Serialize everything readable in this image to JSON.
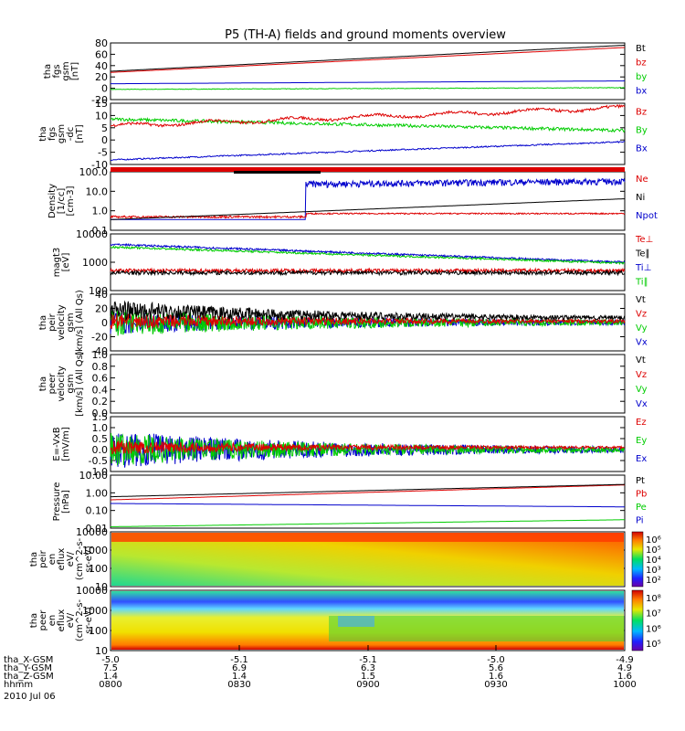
{
  "title": "P5 (TH-A) fields and ground moments overview",
  "colors": {
    "black": "#000000",
    "red": "#dd0000",
    "green": "#00cc00",
    "blue": "#0000cc"
  },
  "panels": [
    {
      "id": "fgs-gsm",
      "ylabel": [
        "tha",
        "fgs",
        "gsm",
        "[nT]"
      ],
      "ticks": [
        "80",
        "60",
        "40",
        "20",
        "0",
        "-20"
      ],
      "legend": [
        {
          "t": "Bt",
          "c": "black"
        },
        {
          "t": "bz",
          "c": "red"
        },
        {
          "t": "by",
          "c": "green"
        },
        {
          "t": "bx",
          "c": "blue"
        }
      ]
    },
    {
      "id": "fgs-gsm-dc",
      "ylabel": [
        "tha",
        "fgs",
        "gsm",
        "-dc",
        "[nT]"
      ],
      "ticks": [
        "15",
        "10",
        "5",
        "0",
        "-5",
        "-10"
      ],
      "legend": [
        {
          "t": "Bz",
          "c": "red"
        },
        {
          "t": "By",
          "c": "green"
        },
        {
          "t": "Bx",
          "c": "blue"
        }
      ]
    },
    {
      "id": "density",
      "ylabel": [
        "Density",
        "[1/cc]",
        "[cm-3]"
      ],
      "ticks": [
        "100.0",
        "10.0",
        "1.0",
        "0.1"
      ],
      "legend": [
        {
          "t": "Ne",
          "c": "red"
        },
        {
          "t": "Ni",
          "c": "black"
        },
        {
          "t": "Npot",
          "c": "blue"
        }
      ]
    },
    {
      "id": "temperature",
      "ylabel": [
        "magt3",
        "[eV]"
      ],
      "ticks": [
        "10000",
        "1000",
        "100"
      ],
      "legend": [
        {
          "t": "Te⊥",
          "c": "red"
        },
        {
          "t": "Te∥",
          "c": "black"
        },
        {
          "t": "Ti⊥",
          "c": "blue"
        },
        {
          "t": "Ti∥",
          "c": "green"
        }
      ]
    },
    {
      "id": "peir-velocity",
      "ylabel": [
        "tha",
        "peir",
        "velocity",
        "gsm",
        "[km/s] (All Qs)"
      ],
      "ticks": [
        "40",
        "20",
        "0",
        "-20",
        "-40"
      ],
      "legend": [
        {
          "t": "Vt",
          "c": "black"
        },
        {
          "t": "Vz",
          "c": "red"
        },
        {
          "t": "Vy",
          "c": "green"
        },
        {
          "t": "Vx",
          "c": "blue"
        }
      ]
    },
    {
      "id": "peer-velocity",
      "ylabel": [
        "tha",
        "peer",
        "velocity",
        "gsm",
        "[km/s] (All Qs)"
      ],
      "ticks": [
        "1.0",
        "0.8",
        "0.6",
        "0.4",
        "0.2",
        "0.0"
      ],
      "legend": [
        {
          "t": "Vt",
          "c": "black"
        },
        {
          "t": "Vz",
          "c": "red"
        },
        {
          "t": "Vy",
          "c": "green"
        },
        {
          "t": "Vx",
          "c": "blue"
        }
      ]
    },
    {
      "id": "efield",
      "ylabel": [
        "E=-VxB",
        "[mV/m]"
      ],
      "ticks": [
        "1.5",
        "1.0",
        "0.5",
        "0.0",
        "-0.5",
        "-1.0"
      ],
      "legend": [
        {
          "t": "Ez",
          "c": "red"
        },
        {
          "t": "Ey",
          "c": "green"
        },
        {
          "t": "Ex",
          "c": "blue"
        }
      ]
    },
    {
      "id": "pressure",
      "ylabel": [
        "Pressure",
        "[nPa]"
      ],
      "ticks": [
        "10.00",
        "1.00",
        "0.10",
        "0.01"
      ],
      "legend": [
        {
          "t": "Pt",
          "c": "black"
        },
        {
          "t": "Pb",
          "c": "red"
        },
        {
          "t": "Pe",
          "c": "green"
        },
        {
          "t": "Pi",
          "c": "blue"
        }
      ]
    },
    {
      "id": "peir-eflux",
      "ylabel": [
        "tha",
        "peir",
        "en",
        "eflux",
        "eV/",
        "(cm^2-s-",
        "sr-eV)"
      ],
      "ticks": [
        "10000",
        "1000",
        "100",
        "10"
      ],
      "colorbar": [
        "10⁶",
        "10⁵",
        "10⁴",
        "10³",
        "10²"
      ]
    },
    {
      "id": "peer-eflux",
      "ylabel": [
        "tha",
        "peer",
        "en",
        "eflux",
        "eV/",
        "(cm^2-s-",
        "sr-eV)"
      ],
      "ticks": [
        "10000",
        "1000",
        "100",
        "10"
      ],
      "colorbar": [
        "10⁸",
        "10⁷",
        "10⁶",
        "10⁵"
      ]
    }
  ],
  "xaxis": {
    "rows": [
      {
        "label": "tha_X-GSM",
        "values": [
          "-5.0",
          "-5.1",
          "-5.1",
          "-5.0",
          "-4.9"
        ]
      },
      {
        "label": "tha_Y-GSM",
        "values": [
          "7.5",
          "6.9",
          "6.3",
          "5.6",
          "4.9"
        ]
      },
      {
        "label": "tha_Z-GSM",
        "values": [
          "1.4",
          "1.4",
          "1.5",
          "1.6",
          "1.6"
        ]
      },
      {
        "label": "hhmm",
        "values": [
          "0800",
          "0830",
          "0900",
          "0930",
          "1000"
        ]
      }
    ],
    "date": "2010 Jul 06"
  },
  "chart_data": [
    {
      "type": "line",
      "title": "P5 (TH-A) fields and ground moments overview",
      "x": [
        "0800",
        "0830",
        "0900",
        "0930",
        "1000"
      ],
      "ylabel": "tha fgs gsm [nT]",
      "ylim": [
        -20,
        80
      ],
      "series": [
        {
          "name": "Bt",
          "values": [
            30,
            40,
            50,
            62,
            76
          ]
        },
        {
          "name": "bz",
          "values": [
            28,
            37,
            47,
            59,
            72
          ]
        },
        {
          "name": "by",
          "values": [
            -3,
            -2,
            -1,
            0,
            0
          ]
        },
        {
          "name": "bx",
          "values": [
            8,
            10,
            11,
            12,
            13
          ]
        }
      ]
    },
    {
      "type": "line",
      "x": [
        "0800",
        "0830",
        "0900",
        "0930",
        "1000"
      ],
      "ylabel": "tha fgs gsm-dc [nT]",
      "ylim": [
        -12,
        15
      ],
      "series": [
        {
          "name": "Bz",
          "values": [
            5,
            7,
            9,
            11,
            13
          ]
        },
        {
          "name": "By",
          "values": [
            8,
            7,
            6,
            5,
            3
          ]
        },
        {
          "name": "Bx",
          "values": [
            -10,
            -8,
            -6,
            -4,
            -2
          ]
        }
      ]
    },
    {
      "type": "line",
      "x": [
        "0800",
        "0830",
        "0900",
        "0930",
        "1000"
      ],
      "ylabel": "Density [1/cc] [cm-3]",
      "ylim": [
        0.1,
        200
      ],
      "yscale": "log",
      "series": [
        {
          "name": "Ne",
          "values": [
            0.4,
            0.5,
            0.7,
            0.8,
            0.9
          ]
        },
        {
          "name": "Ni",
          "values": [
            0.4,
            0.8,
            1.5,
            3,
            6
          ]
        },
        {
          "name": "Npot",
          "values": [
            0.4,
            0.5,
            30,
            50,
            55
          ]
        }
      ]
    },
    {
      "type": "line",
      "x": [
        "0800",
        "0830",
        "0900",
        "0930",
        "1000"
      ],
      "ylabel": "magt3 [eV]",
      "ylim": [
        30,
        12000
      ],
      "yscale": "log",
      "series": [
        {
          "name": "Te⊥",
          "values": [
            250,
            260,
            220,
            230,
            260
          ]
        },
        {
          "name": "Te∥",
          "values": [
            200,
            210,
            180,
            200,
            230
          ]
        },
        {
          "name": "Ti⊥",
          "values": [
            4000,
            3000,
            1800,
            1000,
            600
          ]
        },
        {
          "name": "Ti∥",
          "values": [
            3000,
            2200,
            1300,
            800,
            550
          ]
        }
      ]
    },
    {
      "type": "line",
      "x": [
        "0800",
        "0830",
        "0900",
        "0930",
        "1000"
      ],
      "ylabel": "tha peir velocity gsm [km/s] (All Qs)",
      "ylim": [
        -40,
        40
      ],
      "series": [
        {
          "name": "Vt",
          "values": [
            18,
            10,
            7,
            5,
            3
          ]
        },
        {
          "name": "Vz",
          "values": [
            3,
            2,
            1,
            1,
            1
          ]
        },
        {
          "name": "Vy",
          "values": [
            0,
            0,
            0,
            0,
            0
          ]
        },
        {
          "name": "Vx",
          "values": [
            0,
            0,
            0,
            0,
            0
          ]
        }
      ]
    },
    {
      "type": "line",
      "x": [
        "0800",
        "0830",
        "0900",
        "0930",
        "1000"
      ],
      "ylabel": "tha peer velocity gsm [km/s] (All Qs)",
      "ylim": [
        0,
        1
      ],
      "series": []
    },
    {
      "type": "line",
      "x": [
        "0800",
        "0830",
        "0900",
        "0930",
        "1000"
      ],
      "ylabel": "E=-VxB [mV/m]",
      "ylim": [
        -1,
        1.5
      ],
      "series": [
        {
          "name": "Ez",
          "values": [
            0.1,
            0.05,
            0.0,
            0.0,
            0.0
          ]
        },
        {
          "name": "Ey",
          "values": [
            0.0,
            0.0,
            0.0,
            0.0,
            0.0
          ]
        },
        {
          "name": "Ex",
          "values": [
            0.0,
            0.0,
            0.0,
            0.0,
            0.0
          ]
        }
      ]
    },
    {
      "type": "line",
      "x": [
        "0800",
        "0830",
        "0900",
        "0930",
        "1000"
      ],
      "ylabel": "Pressure [nPa]",
      "ylim": [
        0.01,
        10
      ],
      "yscale": "log",
      "series": [
        {
          "name": "Pt",
          "values": [
            0.6,
            0.9,
            1.3,
            2.0,
            3.0
          ]
        },
        {
          "name": "Pb",
          "values": [
            0.4,
            0.7,
            1.1,
            1.8,
            2.8
          ]
        },
        {
          "name": "Pe",
          "values": [
            0.012,
            0.014,
            0.016,
            0.02,
            0.03
          ]
        },
        {
          "name": "Pi",
          "values": [
            0.25,
            0.2,
            0.18,
            0.17,
            0.16
          ]
        }
      ]
    },
    {
      "type": "heatmap",
      "x": [
        "0800",
        "0830",
        "0900",
        "0930",
        "1000"
      ],
      "ylabel": "tha peir en eflux eV/(cm^2-s-sr-eV)",
      "ylim": [
        5,
        20000
      ],
      "yscale": "log",
      "zlim": [
        100,
        1000000
      ]
    },
    {
      "type": "heatmap",
      "x": [
        "0800",
        "0830",
        "0900",
        "0930",
        "1000"
      ],
      "ylabel": "tha peer en eflux eV/(cm^2-s-sr-eV)",
      "ylim": [
        5,
        20000
      ],
      "yscale": "log",
      "zlim": [
        30000,
        100000000
      ]
    }
  ]
}
